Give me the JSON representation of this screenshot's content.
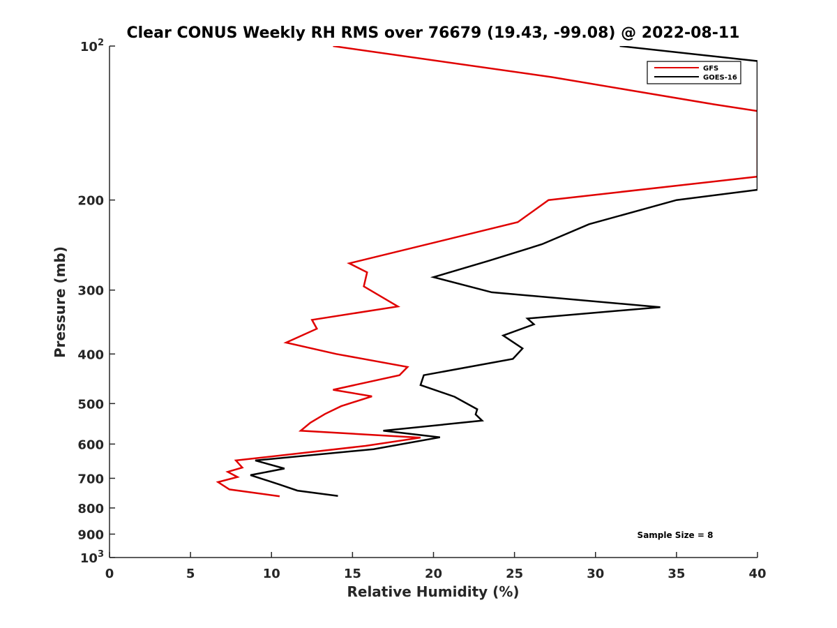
{
  "chart_data": {
    "type": "line",
    "title": "Clear CONUS Weekly RH RMS over 76679 (19.43, -99.08) @ 2022-08-11",
    "xlabel": "Relative Humidity (%)",
    "ylabel": "Pressure (mb)",
    "xlim": [
      0,
      40
    ],
    "ylim": [
      100,
      1000
    ],
    "y_scale": "log",
    "y_reversed": true,
    "x_ticks": [
      "0",
      "5",
      "10",
      "15",
      "20",
      "25",
      "30",
      "35",
      "40"
    ],
    "x_tick_values": [
      0,
      5,
      10,
      15,
      20,
      25,
      30,
      35,
      40
    ],
    "y_tick_values": [
      100,
      200,
      300,
      400,
      500,
      600,
      700,
      800,
      900,
      1000
    ],
    "y_ticks": [
      {
        "base": "10",
        "exp": "2"
      },
      {
        "base": "200",
        "exp": ""
      },
      {
        "base": "300",
        "exp": ""
      },
      {
        "base": "400",
        "exp": ""
      },
      {
        "base": "500",
        "exp": ""
      },
      {
        "base": "600",
        "exp": ""
      },
      {
        "base": "700",
        "exp": ""
      },
      {
        "base": "800",
        "exp": ""
      },
      {
        "base": "900",
        "exp": ""
      },
      {
        "base": "10",
        "exp": "3"
      }
    ],
    "grid": false,
    "legend_position": "top-right",
    "annotation": "Sample Size = 8",
    "series": [
      {
        "name": "GFS",
        "color": "#e00000",
        "points": [
          [
            13.8,
            100
          ],
          [
            27.3,
            115
          ],
          [
            37.3,
            130
          ],
          [
            40,
            134
          ],
          [
            40,
            180
          ],
          [
            27.1,
            200
          ],
          [
            25.2,
            221
          ],
          [
            14.8,
            266
          ],
          [
            15.9,
            277
          ],
          [
            15.7,
            295
          ],
          [
            17.8,
            323
          ],
          [
            12.5,
            343
          ],
          [
            12.8,
            357
          ],
          [
            10.9,
            380
          ],
          [
            14.0,
            400
          ],
          [
            18.4,
            424
          ],
          [
            17.9,
            440
          ],
          [
            13.8,
            470
          ],
          [
            16.2,
            484
          ],
          [
            14.3,
            506
          ],
          [
            13.3,
            524
          ],
          [
            12.4,
            545
          ],
          [
            11.8,
            565
          ],
          [
            19.2,
            583
          ],
          [
            15.8,
            605
          ],
          [
            7.8,
            646
          ],
          [
            8.2,
            667
          ],
          [
            7.3,
            680
          ],
          [
            7.9,
            696
          ],
          [
            6.7,
            712
          ],
          [
            7.4,
            736
          ],
          [
            10.5,
            759
          ]
        ]
      },
      {
        "name": "GOES-16",
        "color": "#000000",
        "points": [
          [
            31.5,
            100
          ],
          [
            40,
            107
          ],
          [
            40,
            191
          ],
          [
            35.0,
            200
          ],
          [
            29.6,
            223
          ],
          [
            26.7,
            244
          ],
          [
            23.4,
            263
          ],
          [
            20.0,
            283
          ],
          [
            23.6,
            303
          ],
          [
            34.0,
            324
          ],
          [
            25.8,
            341
          ],
          [
            26.2,
            350
          ],
          [
            24.3,
            368
          ],
          [
            25.5,
            390
          ],
          [
            24.9,
            409
          ],
          [
            19.4,
            440
          ],
          [
            19.2,
            460
          ],
          [
            21.3,
            485
          ],
          [
            22.7,
            513
          ],
          [
            22.6,
            525
          ],
          [
            23.0,
            540
          ],
          [
            16.9,
            565
          ],
          [
            20.4,
            582
          ],
          [
            16.3,
            614
          ],
          [
            9.0,
            646
          ],
          [
            10.8,
            670
          ],
          [
            8.7,
            690
          ],
          [
            10.5,
            720
          ],
          [
            11.6,
            740
          ],
          [
            14.1,
            758
          ]
        ]
      }
    ]
  }
}
